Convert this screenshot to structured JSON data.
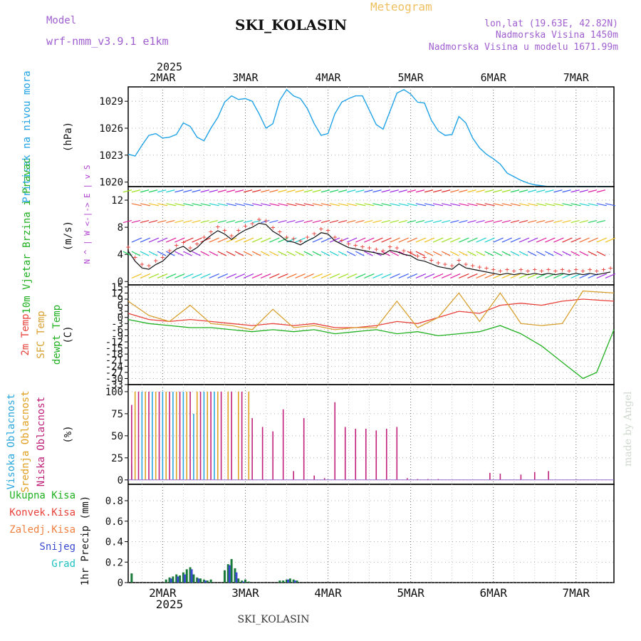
{
  "header": {
    "model_label": "Model",
    "model_name": "wrf-nmm_v3.9.1 e1km",
    "chart_kind": "Meteogram",
    "station": "SKI_KOLASIN",
    "lonlat": "lon,lat (19.63E, 42.82N)",
    "altitude": "Nadmorska Visina 1450m",
    "model_altitude": "Nadmorska Visina u modelu 1671.99m",
    "footer_station": "SKI_KOLASIN",
    "watermark": "made by Angel"
  },
  "time_axis": {
    "year_label": "2025",
    "day_labels": [
      "2MAR",
      "3MAR",
      "4MAR",
      "5MAR",
      "6MAR",
      "7MAR"
    ],
    "start_hour": -10,
    "end_hour": 131
  },
  "colors": {
    "pressure": "#1fa2e6",
    "temp2m": "#e8413a",
    "sfc_temp": "#d8a030",
    "dewpoint": "#20b020",
    "wind_line": "#111111",
    "gust": "#e8413a",
    "cloud_high": "#2aa6de",
    "cloud_mid": "#e0a020",
    "cloud_low": "#c0207a",
    "precip_total": "#1a7a3a",
    "precip_conv": "#e8413a",
    "precip_snow": "#3a4ad0",
    "axis_label_left": "#1fa2e6",
    "legend_wind": "#b040d0"
  },
  "chart_data": [
    {
      "type": "line",
      "id": "pressure",
      "ylabel_left": "Pritisak na nivou mora",
      "unit": "(hPa)",
      "ylim": [
        1019.5,
        1030.6
      ],
      "yticks": [
        1020,
        1023,
        1026,
        1029
      ],
      "series": [
        {
          "x": [
            -10,
            -8,
            -6,
            -4,
            -2,
            0,
            2,
            4,
            6,
            8,
            10,
            12,
            14,
            16,
            18,
            20,
            22,
            24,
            26,
            28,
            30,
            32,
            34,
            36,
            38,
            40,
            42,
            44,
            46,
            48,
            50,
            52,
            54,
            56,
            58,
            60,
            62,
            64,
            66,
            68,
            70,
            72,
            74,
            76,
            78,
            80,
            82,
            84,
            86,
            88,
            90,
            92,
            94,
            96,
            98,
            100,
            102,
            104,
            106,
            108,
            110,
            112,
            114,
            116,
            118,
            120,
            122,
            124,
            126,
            128,
            130
          ],
          "y": [
            1023.1,
            1022.9,
            1024.1,
            1025.2,
            1025.4,
            1024.9,
            1025.0,
            1025.3,
            1026.6,
            1026.2,
            1025.0,
            1024.6,
            1026.0,
            1027.2,
            1028.9,
            1029.6,
            1029.2,
            1029.3,
            1029.0,
            1027.6,
            1026.0,
            1026.5,
            1029.1,
            1030.3,
            1029.6,
            1029.3,
            1028.2,
            1026.5,
            1025.2,
            1025.4,
            1027.6,
            1028.9,
            1029.3,
            1029.6,
            1029.6,
            1028.0,
            1026.4,
            1025.9,
            1027.9,
            1029.9,
            1030.3,
            1029.8,
            1028.9,
            1028.8,
            1026.9,
            1025.7,
            1025.2,
            1025.3,
            1027.3,
            1026.6,
            1024.9,
            1023.8,
            1023.1,
            1022.6,
            1022.0,
            1021.0,
            1020.6,
            1020.2,
            1019.9,
            1019.7,
            1019.6,
            1019.5,
            1019.5,
            1019.5,
            1019.5,
            1019.5,
            1019.5,
            1019.5,
            1019.5,
            1019.5,
            1019.5
          ]
        }
      ]
    },
    {
      "type": "line",
      "id": "wind",
      "ylabel_left": "10m Vjetar Brzina i Pravac",
      "unit": "(m/s)",
      "legend": "N ^ | W <-|-> E | v S",
      "ylim": [
        -0.5,
        14
      ],
      "yticks": [
        0,
        4,
        8,
        12
      ],
      "series": [
        {
          "name": "speed",
          "x": [
            -10,
            -8,
            -6,
            -4,
            -2,
            0,
            2,
            4,
            6,
            8,
            10,
            12,
            14,
            16,
            18,
            20,
            22,
            24,
            26,
            28,
            30,
            32,
            34,
            36,
            38,
            40,
            42,
            44,
            46,
            48,
            50,
            52,
            54,
            56,
            58,
            60,
            62,
            64,
            66,
            68,
            70,
            72,
            74,
            76,
            78,
            80,
            82,
            84,
            86,
            88,
            90,
            92,
            94,
            96,
            98,
            100,
            102,
            104,
            106,
            108,
            110,
            112,
            114,
            116,
            118,
            120,
            122,
            124,
            126,
            128,
            130
          ],
          "y": [
            4.5,
            3.0,
            2.0,
            1.8,
            2.5,
            3.0,
            4.0,
            4.8,
            5.2,
            4.4,
            5.0,
            6.0,
            6.8,
            7.5,
            7.0,
            6.2,
            7.0,
            7.6,
            8.0,
            8.6,
            8.4,
            7.4,
            6.8,
            6.0,
            5.8,
            5.4,
            6.0,
            6.5,
            7.2,
            7.0,
            6.0,
            5.5,
            5.0,
            4.8,
            4.6,
            4.4,
            4.2,
            4.0,
            4.6,
            4.4,
            4.0,
            3.8,
            3.2,
            3.0,
            2.6,
            2.2,
            2.0,
            1.8,
            2.6,
            2.0,
            1.8,
            1.6,
            1.4,
            1.2,
            1.0,
            1.2,
            1.0,
            1.2,
            1.0,
            1.2,
            1.0,
            1.2,
            1.0,
            1.2,
            1.0,
            1.2,
            1.0,
            1.2,
            1.0,
            1.2,
            1.4
          ]
        }
      ]
    },
    {
      "type": "line",
      "id": "temperature",
      "ylabel_left": "2m Temp",
      "ylabel_mid": "SFC Temp",
      "ylabel_right": "dewpt Temp",
      "unit": "(C)",
      "ylim": [
        -33,
        16
      ],
      "yticks": [
        -33,
        -30,
        -27,
        -24,
        -21,
        -18,
        -15,
        -12,
        -9,
        -6,
        -3,
        0,
        3,
        6,
        9,
        12,
        15
      ],
      "series": [
        {
          "name": "2m Temp",
          "x": [
            -10,
            -4,
            2,
            8,
            14,
            20,
            26,
            32,
            38,
            44,
            50,
            56,
            62,
            68,
            74,
            80,
            86,
            92,
            98,
            104,
            110,
            116,
            122,
            131
          ],
          "y": [
            2,
            -1,
            -2,
            -1,
            -2,
            -3,
            -4,
            -3,
            -4,
            -3,
            -5,
            -5,
            -4,
            -2,
            -3,
            0,
            3,
            2,
            6,
            7,
            6,
            8,
            9,
            8
          ]
        },
        {
          "name": "SFC Temp",
          "x": [
            -10,
            -4,
            2,
            8,
            14,
            20,
            26,
            32,
            38,
            44,
            50,
            56,
            62,
            68,
            74,
            80,
            86,
            92,
            98,
            104,
            110,
            116,
            122,
            131
          ],
          "y": [
            8,
            1,
            -2,
            6,
            -3,
            -4,
            -6,
            4,
            -5,
            -4,
            -6,
            -5,
            -5,
            8,
            -5,
            0,
            12,
            -2,
            12,
            -3,
            -4,
            -3,
            13,
            12
          ]
        },
        {
          "name": "dewpt Temp",
          "x": [
            -10,
            -4,
            2,
            8,
            14,
            20,
            26,
            32,
            38,
            44,
            50,
            56,
            62,
            68,
            74,
            80,
            86,
            92,
            98,
            104,
            110,
            116,
            122,
            126,
            131
          ],
          "y": [
            -1,
            -3,
            -4,
            -5,
            -5,
            -6,
            -7,
            -6,
            -7,
            -6,
            -8,
            -7,
            -6,
            -8,
            -7,
            -9,
            -8,
            -7,
            -4,
            -8,
            -14,
            -22,
            -30,
            -27,
            -6
          ]
        }
      ]
    },
    {
      "type": "bar",
      "id": "clouds",
      "ylabel_left": "Visoka Oblacnost",
      "ylabel_mid": "Srednja Oblacnost",
      "ylabel_right": "Niska Oblacnost",
      "unit": "(%)",
      "ylim": [
        -5,
        108
      ],
      "yticks": [
        0,
        25,
        50,
        75,
        100
      ],
      "series": [
        {
          "name": "high",
          "x": [
            -9,
            -6,
            -3,
            0,
            3,
            6,
            9,
            12,
            15
          ],
          "values": [
            18,
            100,
            100,
            100,
            100,
            100,
            75,
            100,
            100
          ]
        },
        {
          "name": "mid",
          "x": [
            -8,
            -5,
            -2,
            1,
            4,
            7,
            10,
            13,
            16,
            19,
            22,
            25
          ],
          "values": [
            100,
            100,
            100,
            100,
            100,
            100,
            100,
            100,
            100,
            100,
            100,
            100
          ]
        },
        {
          "name": "low",
          "x": [
            -9,
            -7,
            -4,
            -1,
            2,
            5,
            8,
            11,
            14,
            17,
            20,
            23,
            26,
            29,
            32,
            35,
            38,
            41,
            44,
            47,
            50,
            53,
            56,
            59,
            62,
            65,
            68,
            71,
            74,
            77,
            80,
            95,
            98,
            104,
            108,
            112
          ],
          "values": [
            85,
            100,
            100,
            100,
            100,
            100,
            100,
            100,
            100,
            100,
            100,
            100,
            70,
            60,
            55,
            80,
            10,
            70,
            5,
            2,
            88,
            60,
            58,
            58,
            56,
            58,
            60,
            2,
            1,
            1,
            1,
            8,
            7,
            6,
            9,
            10
          ]
        }
      ]
    },
    {
      "type": "bar",
      "id": "precip",
      "ylabel_right": "1hr Precip (mm)",
      "legend": [
        "Ukupna Kisa",
        "Konvek.Kisa",
        "Zaledj.Kisa",
        "Snijeg",
        "Grad"
      ],
      "ylim": [
        0,
        0.96
      ],
      "yticks": [
        0,
        0.2,
        0.4,
        0.6,
        0.8
      ],
      "series": [
        {
          "name": "Ukupna Kisa",
          "x": [
            -9,
            1,
            2,
            3,
            4,
            5,
            6,
            7,
            8,
            9,
            10,
            11,
            12,
            13,
            14,
            18,
            19,
            20,
            21,
            22,
            23,
            24,
            25,
            34,
            35,
            36,
            37,
            38,
            39
          ],
          "values": [
            0.09,
            0.03,
            0.05,
            0.06,
            0.08,
            0.07,
            0.1,
            0.13,
            0.15,
            0.08,
            0.05,
            0.04,
            0.03,
            0.02,
            0.03,
            0.12,
            0.18,
            0.23,
            0.14,
            0.04,
            0.02,
            0.03,
            0.01,
            0.02,
            0.02,
            0.03,
            0.04,
            0.03,
            0.02
          ]
        },
        {
          "name": "Snijeg",
          "x": [
            2,
            4,
            6,
            8,
            10,
            12,
            19,
            21,
            23,
            36,
            38
          ],
          "values": [
            0.04,
            0.06,
            0.08,
            0.13,
            0.04,
            0.02,
            0.17,
            0.1,
            0.01,
            0.03,
            0.02
          ]
        }
      ]
    }
  ]
}
